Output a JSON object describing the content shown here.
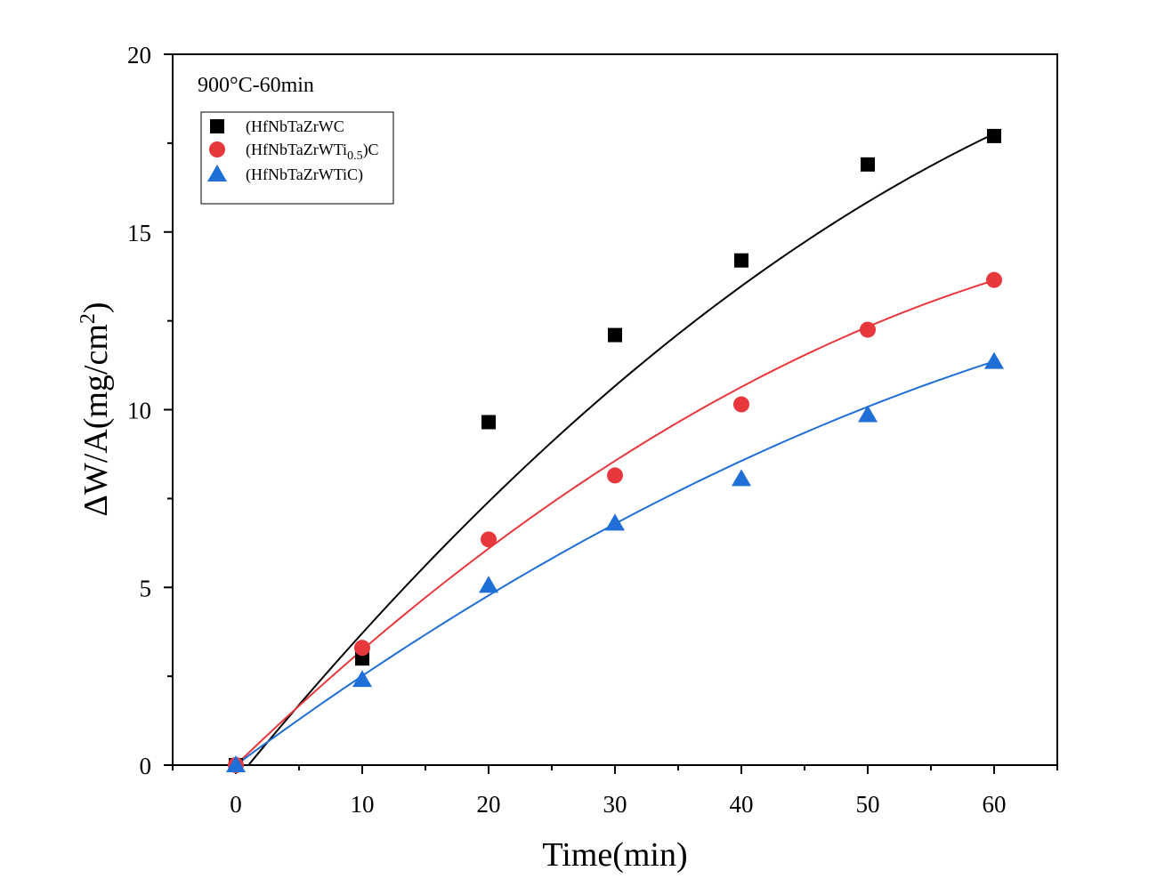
{
  "chart_data": {
    "type": "scatter",
    "annotation": "900°C-60min",
    "xlabel": "Time(min)",
    "ylabel_main": "ΔW/A(mg/cm",
    "ylabel_sup": "2",
    "ylabel_close": ")",
    "xlim": [
      -5,
      65
    ],
    "ylim": [
      0,
      20
    ],
    "xticks": [
      0,
      10,
      20,
      30,
      40,
      50,
      60
    ],
    "yticks": [
      0,
      5,
      10,
      15,
      20
    ],
    "xtick_labels": [
      "0",
      "10",
      "20",
      "30",
      "40",
      "50",
      "60"
    ],
    "ytick_labels": [
      "0",
      "5",
      "10",
      "15",
      "20"
    ],
    "grid": false,
    "legend_position": "top-left",
    "series": [
      {
        "name": "(HfNbTaZrWC",
        "name_parts": [
          "(HfNbTaZrWC"
        ],
        "marker": "square",
        "color": "#000000",
        "x": [
          0,
          10,
          20,
          30,
          40,
          50,
          60
        ],
        "y": [
          0,
          3.0,
          9.65,
          12.1,
          14.2,
          16.9,
          17.7
        ],
        "fit": {
          "x0": 1.0,
          "x1": 60,
          "a": 0.4322,
          "b": 0.002222,
          "c": 0
        }
      },
      {
        "name": "(HfNbTaZrWTi0.5)C",
        "name_parts": [
          "(HfNbTaZrWTi",
          "0.5",
          ")C"
        ],
        "marker": "circle",
        "color": "#e8383d",
        "x": [
          0,
          10,
          20,
          30,
          40,
          50,
          60
        ],
        "y": [
          0,
          3.3,
          6.35,
          8.15,
          10.15,
          12.25,
          13.65
        ],
        "fit": {
          "x0": 0,
          "x1": 60,
          "a": 0.3433,
          "b": 0.001933,
          "c": 0
        }
      },
      {
        "name": "(HfNbTaZrWTiC)",
        "name_parts": [
          "(HfNbTaZrWTiC)"
        ],
        "marker": "triangle",
        "color": "#1f6fd6",
        "x": [
          0,
          10,
          20,
          30,
          40,
          50,
          60
        ],
        "y": [
          0,
          2.4,
          5.05,
          6.8,
          8.05,
          9.85,
          11.35
        ],
        "fit": {
          "x0": 0,
          "x1": 60,
          "a": 0.2633,
          "b": 0.001233,
          "c": 0
        }
      }
    ]
  }
}
